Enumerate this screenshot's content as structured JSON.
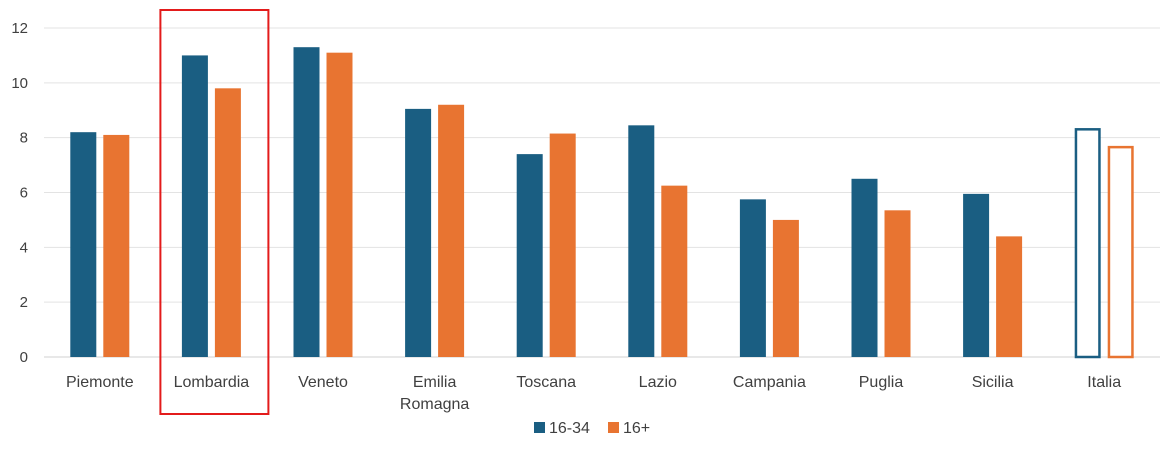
{
  "chart_data": {
    "type": "bar",
    "categories": [
      [
        "Piemonte"
      ],
      [
        "Lombardia"
      ],
      [
        "Veneto"
      ],
      [
        "Emilia",
        "Romagna"
      ],
      [
        "Toscana"
      ],
      [
        "Lazio"
      ],
      [
        "Campania"
      ],
      [
        "Puglia"
      ],
      [
        "Sicilia"
      ],
      [
        "Italia"
      ]
    ],
    "series": [
      {
        "name": "16-34",
        "color": "#1a5e82",
        "values": [
          8.2,
          11.0,
          11.3,
          9.05,
          7.4,
          8.45,
          5.75,
          6.5,
          5.95,
          8.35
        ]
      },
      {
        "name": "16+",
        "color": "#e87431",
        "values": [
          8.1,
          9.8,
          11.1,
          9.2,
          8.15,
          6.25,
          5.0,
          5.35,
          4.4,
          7.7
        ]
      }
    ],
    "outlined_categories": [
      "Italia"
    ],
    "highlighted_category": "Lombardia",
    "highlight_color": "#e31b1b",
    "ylim": [
      0,
      12
    ],
    "yticks": [
      0,
      2,
      4,
      6,
      8,
      10,
      12
    ],
    "grid": true,
    "legend_position": "bottom-center"
  }
}
